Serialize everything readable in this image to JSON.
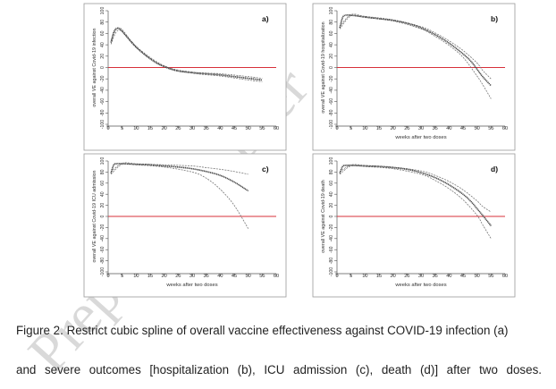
{
  "watermark": "Preprint not peer",
  "caption": {
    "line1": "Figure 2. Restrict cubic spline of overall vaccine effectiveness against COVID-19 infection (a)",
    "line2": "and severe outcomes [hospitalization (b), ICU admission (c), death (d)] after two doses."
  },
  "colors": {
    "curve": "#444444",
    "ci": "#777777",
    "zero_line": "#d7303a",
    "frame": "#999999",
    "axis": "#555555"
  },
  "chart_data": [
    {
      "id": "a",
      "type": "line",
      "title": "a)",
      "xlabel": "",
      "ylabel": "overall VE against Covid-19 infection",
      "xlim": [
        0,
        60
      ],
      "ylim": [
        -100,
        100
      ],
      "xticks": [
        0,
        5,
        10,
        15,
        20,
        25,
        30,
        35,
        40,
        45,
        50,
        55,
        60
      ],
      "yticks": [
        -100,
        -80,
        -60,
        -40,
        -20,
        0,
        20,
        40,
        60,
        80,
        100
      ],
      "reference_line_y": 0,
      "series": [
        {
          "x": [
            1,
            2,
            3,
            4,
            5,
            6,
            8,
            10,
            12,
            14,
            16,
            18,
            20,
            22,
            24,
            26,
            30,
            35,
            40,
            45,
            50,
            55
          ],
          "values": [
            44,
            62,
            69,
            68,
            64,
            58,
            47,
            36,
            27,
            19,
            12,
            6,
            2,
            -2,
            -5,
            -7,
            -9,
            -11,
            -13,
            -16,
            -19,
            -22
          ]
        }
      ],
      "ci_upper": {
        "x": [
          1,
          4,
          10,
          20,
          30,
          40,
          50,
          55
        ],
        "values": [
          47,
          70,
          37,
          3,
          -8,
          -11,
          -16,
          -19
        ]
      },
      "ci_lower": {
        "x": [
          1,
          4,
          10,
          20,
          30,
          40,
          50,
          55
        ],
        "values": [
          41,
          66,
          35,
          1,
          -10,
          -15,
          -22,
          -25
        ]
      }
    },
    {
      "id": "b",
      "type": "line",
      "title": "b)",
      "xlabel": "weeks after two doses",
      "ylabel": "overall VE against Covid-19 hospitalization",
      "xlim": [
        0,
        60
      ],
      "ylim": [
        -100,
        100
      ],
      "xticks": [
        0,
        5,
        10,
        15,
        20,
        25,
        30,
        35,
        40,
        45,
        50,
        55,
        60
      ],
      "yticks": [
        -100,
        -80,
        -60,
        -40,
        -20,
        0,
        20,
        40,
        60,
        80,
        100
      ],
      "reference_line_y": 0,
      "series": [
        {
          "x": [
            1,
            2,
            3,
            5,
            10,
            15,
            20,
            25,
            30,
            35,
            40,
            45,
            48,
            50,
            52,
            55
          ],
          "values": [
            70,
            88,
            92,
            92,
            89,
            86,
            83,
            78,
            70,
            58,
            43,
            24,
            10,
            -3,
            -16,
            -32
          ]
        }
      ],
      "ci_upper": {
        "x": [
          1,
          5,
          10,
          20,
          30,
          35,
          40,
          45,
          50,
          52,
          55
        ],
        "values": [
          72,
          93,
          90,
          84,
          72,
          61,
          47,
          30,
          8,
          -5,
          -20
        ]
      },
      "ci_lower": {
        "x": [
          1,
          5,
          10,
          20,
          30,
          35,
          40,
          45,
          50,
          52,
          55
        ],
        "values": [
          68,
          91,
          88,
          82,
          68,
          55,
          39,
          18,
          -15,
          -30,
          -55
        ]
      }
    },
    {
      "id": "c",
      "type": "line",
      "title": "c)",
      "xlabel": "weeks after two doses",
      "ylabel": "overall VE against Covid-19 ICU admission",
      "xlim": [
        0,
        60
      ],
      "ylim": [
        -100,
        100
      ],
      "xticks": [
        0,
        5,
        10,
        15,
        20,
        25,
        30,
        35,
        40,
        45,
        50,
        55,
        60
      ],
      "yticks": [
        -100,
        -80,
        -60,
        -40,
        -20,
        0,
        20,
        40,
        60,
        80,
        100
      ],
      "reference_line_y": 0,
      "series": [
        {
          "x": [
            1,
            2,
            3,
            5,
            10,
            15,
            20,
            25,
            30,
            35,
            40,
            45,
            50
          ],
          "values": [
            78,
            93,
            95,
            95,
            94,
            93,
            91,
            89,
            86,
            81,
            74,
            62,
            46
          ]
        }
      ],
      "ci_upper": {
        "x": [
          1,
          5,
          10,
          20,
          30,
          35,
          40,
          45,
          50
        ],
        "values": [
          80,
          96,
          95,
          93,
          91,
          88,
          85,
          81,
          76
        ]
      },
      "ci_lower": {
        "x": [
          1,
          5,
          10,
          20,
          30,
          35,
          40,
          45,
          50
        ],
        "values": [
          76,
          94,
          93,
          89,
          80,
          69,
          49,
          20,
          -22
        ]
      }
    },
    {
      "id": "d",
      "type": "line",
      "title": "d)",
      "xlabel": "weeks after two doses",
      "ylabel": "overall VE against Covid-19 death",
      "xlim": [
        0,
        60
      ],
      "ylim": [
        -100,
        100
      ],
      "xticks": [
        0,
        5,
        10,
        15,
        20,
        25,
        30,
        35,
        40,
        45,
        50,
        55,
        60
      ],
      "yticks": [
        -100,
        -80,
        -60,
        -40,
        -20,
        0,
        20,
        40,
        60,
        80,
        100
      ],
      "reference_line_y": 0,
      "series": [
        {
          "x": [
            1,
            2,
            3,
            5,
            10,
            15,
            20,
            25,
            30,
            35,
            40,
            45,
            48,
            50,
            52,
            55
          ],
          "values": [
            78,
            90,
            92,
            92,
            91,
            90,
            88,
            85,
            79,
            70,
            57,
            40,
            26,
            14,
            2,
            -17
          ]
        }
      ],
      "ci_upper": {
        "x": [
          1,
          5,
          10,
          20,
          30,
          35,
          40,
          45,
          50,
          52,
          55
        ],
        "values": [
          80,
          93,
          92,
          89,
          82,
          74,
          63,
          48,
          28,
          18,
          8
        ]
      },
      "ci_lower": {
        "x": [
          1,
          5,
          10,
          20,
          30,
          35,
          40,
          45,
          50,
          52,
          55
        ],
        "values": [
          76,
          91,
          90,
          86,
          76,
          65,
          50,
          30,
          2,
          -15,
          -40
        ]
      }
    }
  ]
}
